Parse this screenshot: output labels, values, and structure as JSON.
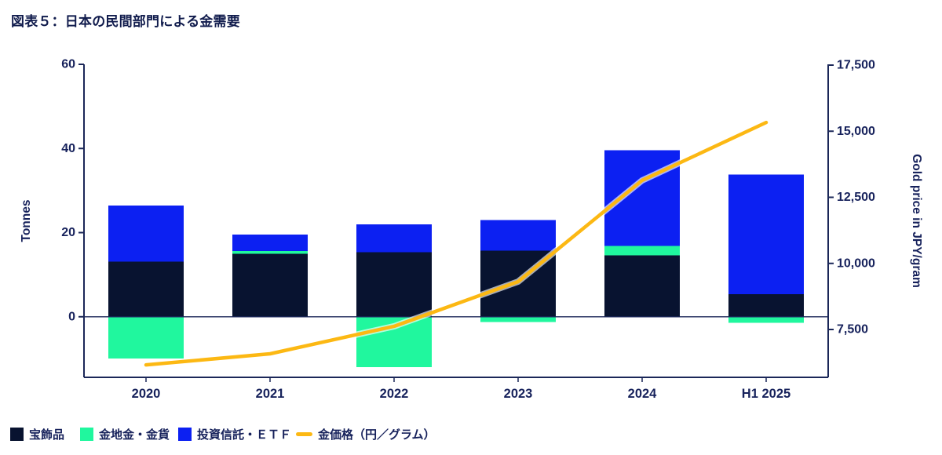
{
  "title": "図表５：日本の民間部門による金需要",
  "colors": {
    "jewellery": "#081330",
    "bars_coins": "#20F79E",
    "etf": "#0C20F2",
    "gold_line": "#FCB813",
    "gold_line_glow": "#FFFFFF",
    "axis": "#1B2758",
    "text": "#16215B",
    "title_text": "#111C4D"
  },
  "chart_data": {
    "type": "combo-stacked-bar-line",
    "categories": [
      "2020",
      "2021",
      "2022",
      "2023",
      "2024",
      "H1 2025"
    ],
    "series": [
      {
        "name": "宝飾品",
        "type": "bar",
        "axis": "left",
        "color": "#081330",
        "values": [
          13.1,
          15.0,
          15.3,
          15.7,
          14.6,
          5.4
        ]
      },
      {
        "name": "金地金・金貨",
        "type": "bar",
        "axis": "left",
        "color": "#20F79E",
        "values": [
          -9.9,
          0.6,
          -12.0,
          -1.3,
          2.2,
          -1.4
        ]
      },
      {
        "name": "投資信託・ＥＴＦ",
        "type": "bar",
        "axis": "left",
        "color": "#0C20F2",
        "values": [
          13.3,
          3.9,
          6.7,
          7.3,
          22.8,
          28.4
        ]
      },
      {
        "name": "金価格（円／グラム）",
        "type": "line",
        "axis": "right",
        "color": "#FCB813",
        "values": [
          6160,
          6580,
          7620,
          9310,
          13140,
          15330
        ]
      }
    ],
    "left_axis": {
      "label": "Tonnes",
      "ticks": [
        0,
        20,
        40,
        60
      ],
      "range": [
        -14.4,
        60
      ]
    },
    "right_axis": {
      "label": "Gold price in JPY/gram",
      "ticks": [
        7500,
        10000,
        12500,
        15000,
        17500
      ],
      "range": [
        5690,
        17530
      ]
    },
    "legend_position": "bottom",
    "grid": "off"
  }
}
